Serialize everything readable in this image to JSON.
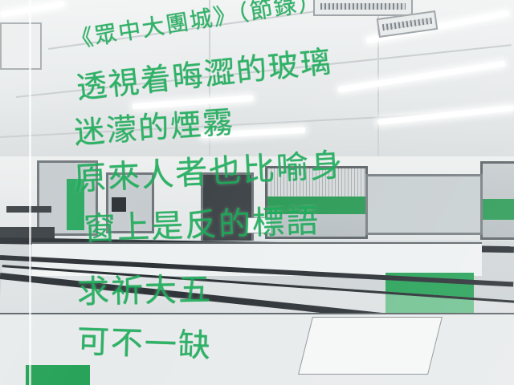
{
  "photo": {
    "handwriting_color": "#1fae5c",
    "accent_green": "#1f9a4c",
    "poem_lines": [
      "《眾中大團城》（節錄）",
      "透視着晦澀的玻璃",
      "迷濛的煙霧",
      "原來人者也比喻身",
      "窗上是反的標語",
      "求祈大五",
      "可不一缺"
    ]
  }
}
